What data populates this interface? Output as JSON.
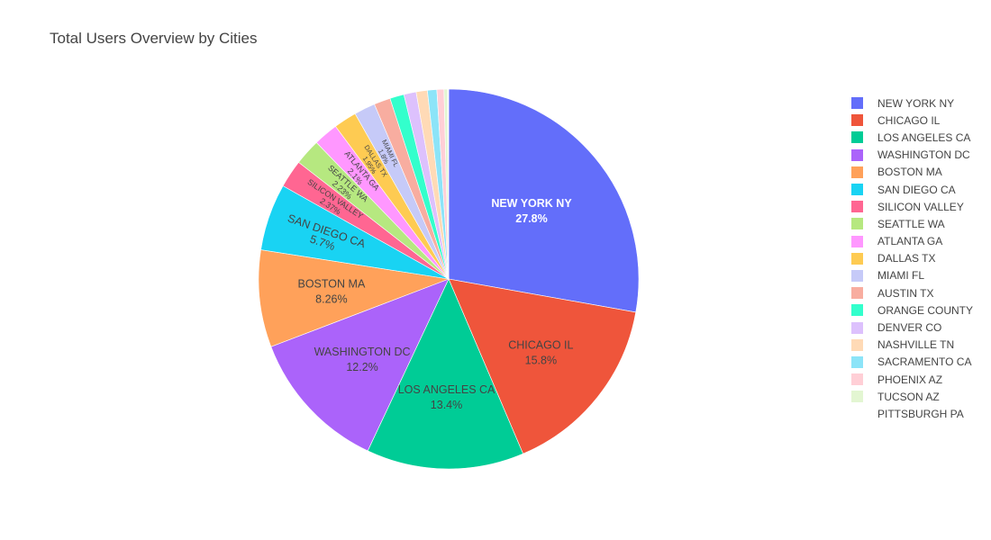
{
  "chart_data": {
    "type": "pie",
    "title": "Total Users Overview by Cities",
    "legend_position": "right",
    "direction": "clockwise",
    "start_angle": "top",
    "slices": [
      {
        "label": "NEW YORK NY",
        "value": 27.8,
        "percent": "27.8%",
        "color": "#636efa"
      },
      {
        "label": "CHICAGO IL",
        "value": 15.8,
        "percent": "15.8%",
        "color": "#ef553b"
      },
      {
        "label": "LOS ANGELES CA",
        "value": 13.4,
        "percent": "13.4%",
        "color": "#00cc96"
      },
      {
        "label": "WASHINGTON DC",
        "value": 12.2,
        "percent": "12.2%",
        "color": "#ab63fa"
      },
      {
        "label": "BOSTON MA",
        "value": 8.26,
        "percent": "8.26%",
        "color": "#ffa15a"
      },
      {
        "label": "SAN DIEGO CA",
        "value": 5.7,
        "percent": "5.7%",
        "color": "#19d3f3"
      },
      {
        "label": "SILICON VALLEY",
        "value": 2.37,
        "percent": "2.37%",
        "color": "#ff6692"
      },
      {
        "label": "SEATTLE WA",
        "value": 2.23,
        "percent": "2.23%",
        "color": "#b6e880"
      },
      {
        "label": "ATLANTA GA",
        "value": 2.1,
        "percent": "2.1%",
        "color": "#ff97ff"
      },
      {
        "label": "DALLAS TX",
        "value": 1.95,
        "percent": "1.95%",
        "color": "#fecb52"
      },
      {
        "label": "MIAMI FL",
        "value": 1.8,
        "percent": "1.8%",
        "color": "#c6caf8"
      },
      {
        "label": "AUSTIN TX",
        "value": 1.4,
        "percent": "",
        "color": "#f8ada0"
      },
      {
        "label": "ORANGE COUNTY",
        "value": 1.2,
        "percent": "",
        "color": "#33ffcc"
      },
      {
        "label": "DENVER CO",
        "value": 1.05,
        "percent": "",
        "color": "#ddc1fd"
      },
      {
        "label": "NASHVILLE TN",
        "value": 0.95,
        "percent": "",
        "color": "#ffdab6"
      },
      {
        "label": "SACRAMENTO CA",
        "value": 0.8,
        "percent": "",
        "color": "#8ce4f8"
      },
      {
        "label": "PHOENIX AZ",
        "value": 0.6,
        "percent": "",
        "color": "#ffcfd6"
      },
      {
        "label": "TUCSON AZ",
        "value": 0.3,
        "percent": "",
        "color": "#e3f6d2"
      },
      {
        "label": "PITTSBURGH PA",
        "value": 0.09,
        "percent": "",
        "color": "#ffffff"
      }
    ]
  }
}
